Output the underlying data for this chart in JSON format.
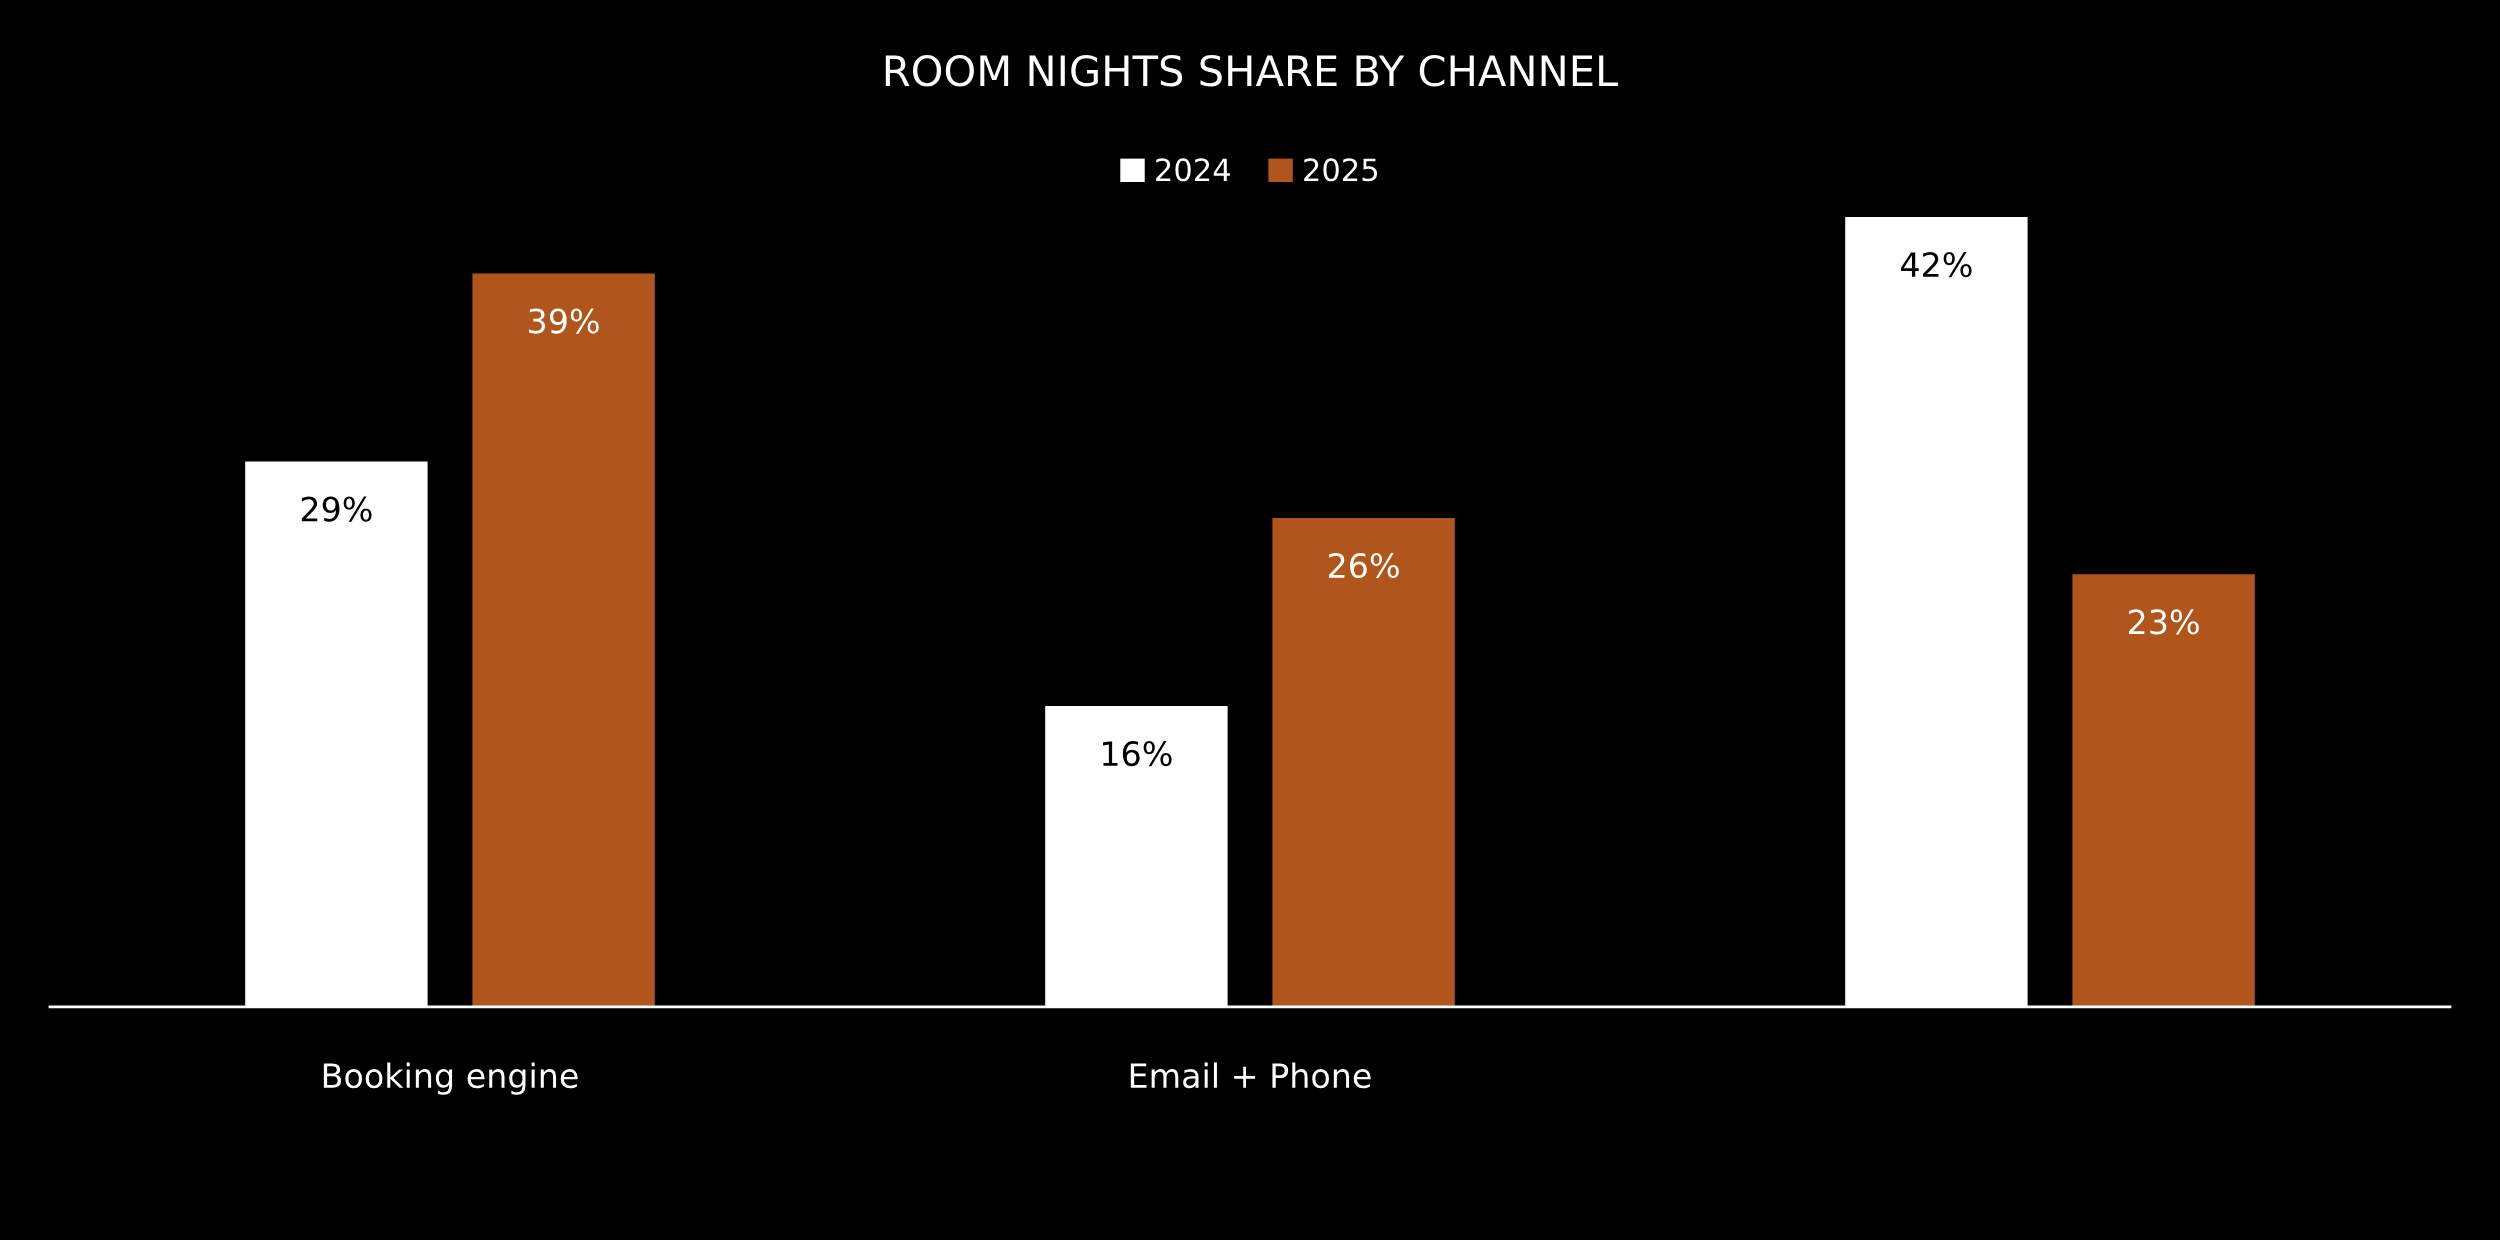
{
  "chart_data": {
    "type": "bar",
    "title": "ROOM NIGHTS SHARE BY CHANNEL",
    "categories": [
      "Booking engine",
      "Email + Phone",
      null
    ],
    "series": [
      {
        "name": "2024",
        "color": "#ffffff",
        "values": [
          29,
          16,
          42
        ],
        "value_labels": [
          "29%",
          "16%",
          "42%"
        ]
      },
      {
        "name": "2025",
        "color": "#b0561c",
        "values": [
          39,
          26,
          23
        ],
        "value_labels": [
          "39%",
          "26%",
          "23%"
        ]
      }
    ],
    "grid": false,
    "legend": "top"
  }
}
